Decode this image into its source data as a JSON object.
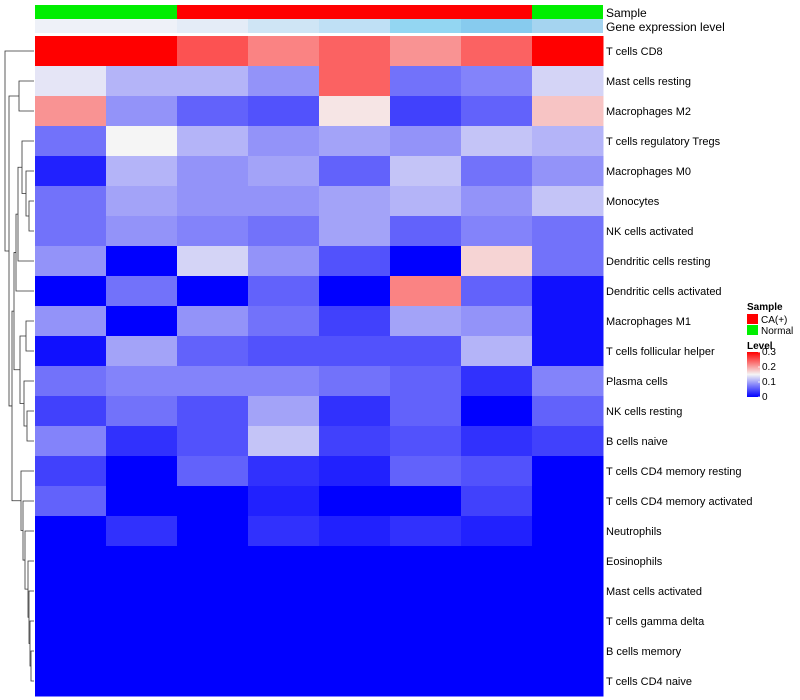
{
  "chart_data": {
    "type": "heatmap",
    "annotation_tracks": [
      {
        "name": "Sample",
        "values": [
          "Normal",
          "Normal",
          "CA(+)",
          "CA(+)",
          "CA(+)",
          "CA(+)",
          "CA(+)",
          "Normal"
        ]
      },
      {
        "name": "Gene expression level",
        "values": [
          "#eef1f8",
          "#eef1f8",
          "#e4ecf7",
          "#cfe5f5",
          "#bfe0f5",
          "#93d6f2",
          "#87cbee",
          "#a5d4f0"
        ]
      }
    ],
    "rows": [
      "T cells CD8",
      "Mast cells resting",
      "Macrophages M2",
      "T cells regulatory  Tregs",
      "Macrophages M0",
      "Monocytes",
      "NK cells activated",
      "Dendritic cells resting",
      "Dendritic cells activated",
      "Macrophages M1",
      "T cells follicular helper",
      "Plasma cells",
      "NK cells resting",
      "B cells naive",
      "T cells CD4 memory resting",
      "T cells CD4 memory activated",
      "Neutrophils",
      "Eosinophils",
      "Mast cells activated",
      "T cells gamma delta",
      "B cells memory",
      "T cells CD4 naive"
    ],
    "values": [
      [
        0.3,
        0.3,
        0.25,
        0.22,
        0.24,
        0.21,
        0.24,
        0.3
      ],
      [
        0.14,
        0.11,
        0.11,
        0.09,
        0.24,
        0.07,
        0.08,
        0.13
      ],
      [
        0.21,
        0.09,
        0.06,
        0.05,
        0.16,
        0.04,
        0.06,
        0.18
      ],
      [
        0.07,
        0.15,
        0.11,
        0.09,
        0.1,
        0.09,
        0.12,
        0.11
      ],
      [
        0.02,
        0.11,
        0.09,
        0.1,
        0.06,
        0.12,
        0.07,
        0.09
      ],
      [
        0.07,
        0.1,
        0.09,
        0.09,
        0.1,
        0.11,
        0.09,
        0.12
      ],
      [
        0.07,
        0.09,
        0.08,
        0.07,
        0.1,
        0.06,
        0.08,
        0.07
      ],
      [
        0.09,
        0.0,
        0.13,
        0.09,
        0.05,
        0.0,
        0.17,
        0.07
      ],
      [
        0.0,
        0.07,
        0.0,
        0.06,
        0.0,
        0.22,
        0.06,
        0.01
      ],
      [
        0.09,
        0.0,
        0.09,
        0.07,
        0.04,
        0.1,
        0.09,
        0.01
      ],
      [
        0.01,
        0.1,
        0.06,
        0.05,
        0.05,
        0.05,
        0.11,
        0.01
      ],
      [
        0.07,
        0.08,
        0.08,
        0.08,
        0.07,
        0.06,
        0.03,
        0.08
      ],
      [
        0.04,
        0.07,
        0.05,
        0.1,
        0.03,
        0.06,
        0.0,
        0.06
      ],
      [
        0.08,
        0.03,
        0.05,
        0.12,
        0.04,
        0.05,
        0.03,
        0.04
      ],
      [
        0.04,
        0.0,
        0.06,
        0.03,
        0.02,
        0.06,
        0.05,
        0.0
      ],
      [
        0.06,
        0.0,
        0.0,
        0.02,
        0.0,
        0.0,
        0.04,
        0.0
      ],
      [
        0.0,
        0.03,
        0.0,
        0.03,
        0.02,
        0.03,
        0.02,
        0.0
      ],
      [
        0.0,
        0.0,
        0.0,
        0.0,
        0.0,
        0.0,
        0.0,
        0.0
      ],
      [
        0.0,
        0.0,
        0.0,
        0.0,
        0.0,
        0.0,
        0.0,
        0.0
      ],
      [
        0.0,
        0.0,
        0.0,
        0.0,
        0.0,
        0.0,
        0.0,
        0.0
      ],
      [
        0.0,
        0.0,
        0.0,
        0.0,
        0.0,
        0.0,
        0.0,
        0.0
      ],
      [
        0.0,
        0.0,
        0.0,
        0.0,
        0.0,
        0.0,
        0.0,
        0.0
      ]
    ],
    "color_scale": {
      "min": 0,
      "mid": 0.15,
      "max": 0.3,
      "low": "#0000ff",
      "mid_color": "#f5f5f5",
      "high": "#ff0000"
    },
    "legend": {
      "sample_title": "Sample",
      "sample_items": [
        {
          "label": "CA(+)",
          "color": "#ff0000"
        },
        {
          "label": "Normal",
          "color": "#00ee00"
        }
      ],
      "level_title": "Level",
      "level_ticks": [
        "0.3",
        "0.2",
        "0.1",
        "0"
      ],
      "placement": "right"
    },
    "dendrogram": "rows"
  }
}
